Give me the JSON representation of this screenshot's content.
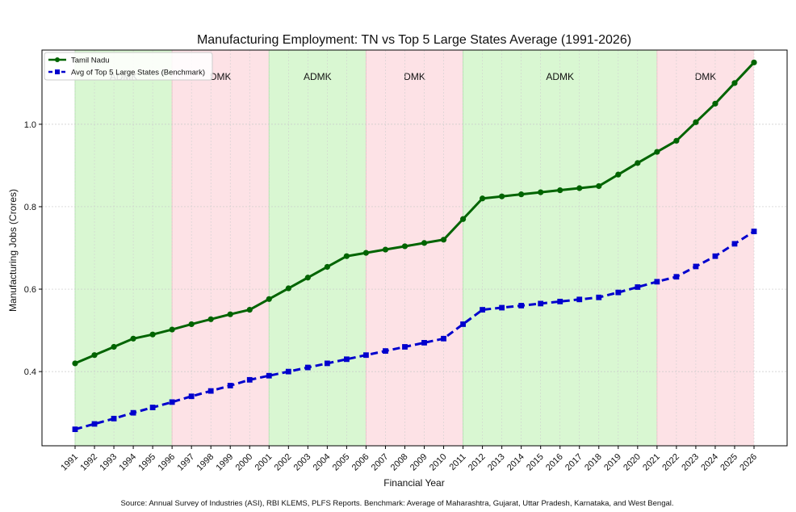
{
  "chart_data": {
    "type": "line",
    "title": "Manufacturing Employment: TN vs Top 5 Large States Average (1991-2026)",
    "xlabel": "Financial Year",
    "ylabel": "Manufacturing Jobs (Crores)",
    "x": [
      "1991",
      "1992",
      "1993",
      "1994",
      "1995",
      "1996",
      "1997",
      "1998",
      "1999",
      "2000",
      "2001",
      "2002",
      "2003",
      "2004",
      "2005",
      "2006",
      "2007",
      "2008",
      "2009",
      "2010",
      "2011",
      "2012",
      "2013",
      "2014",
      "2015",
      "2016",
      "2017",
      "2018",
      "2019",
      "2020",
      "2021",
      "2022",
      "2023",
      "2024",
      "2025",
      "2026"
    ],
    "ylim": [
      0.22,
      1.18
    ],
    "yticks": [
      0.4,
      0.6,
      0.8,
      1.0
    ],
    "ytick_labels": [
      "0.4",
      "0.6",
      "0.8",
      "1.0"
    ],
    "grid": true,
    "legend_position": "top-left",
    "series": [
      {
        "name": "Tamil Nadu",
        "color": "#006400",
        "style": "solid",
        "marker": "circle",
        "values": [
          0.42,
          0.44,
          0.46,
          0.48,
          0.49,
          0.502,
          0.515,
          0.527,
          0.539,
          0.55,
          0.576,
          0.602,
          0.628,
          0.654,
          0.68,
          0.688,
          0.696,
          0.704,
          0.712,
          0.72,
          0.77,
          0.82,
          0.825,
          0.83,
          0.835,
          0.84,
          0.845,
          0.85,
          0.878,
          0.906,
          0.933,
          0.96,
          1.005,
          1.05,
          1.1,
          1.15
        ]
      },
      {
        "name": "Avg of Top 5 Large States (Benchmark)",
        "color": "#0000CD",
        "style": "dashed",
        "marker": "square",
        "values": [
          0.26,
          0.273,
          0.286,
          0.3,
          0.313,
          0.326,
          0.34,
          0.353,
          0.366,
          0.38,
          0.39,
          0.4,
          0.41,
          0.42,
          0.43,
          0.44,
          0.45,
          0.46,
          0.47,
          0.48,
          0.515,
          0.55,
          0.555,
          0.56,
          0.565,
          0.57,
          0.575,
          0.58,
          0.592,
          0.605,
          0.618,
          0.63,
          0.655,
          0.68,
          0.71,
          0.74
        ]
      }
    ],
    "bands": [
      {
        "label": "ADMK",
        "start": "1991",
        "end": "1996",
        "color": "#d9f7d2"
      },
      {
        "label": "DMK",
        "start": "1996",
        "end": "2001",
        "color": "#fde2e6"
      },
      {
        "label": "ADMK",
        "start": "2001",
        "end": "2006",
        "color": "#d9f7d2"
      },
      {
        "label": "DMK",
        "start": "2006",
        "end": "2011",
        "color": "#fde2e6"
      },
      {
        "label": "ADMK",
        "start": "2011",
        "end": "2021",
        "color": "#d9f7d2"
      },
      {
        "label": "DMK",
        "start": "2021",
        "end": "2026",
        "color": "#fde2e6"
      }
    ],
    "source_note": "Source: Annual Survey of Industries (ASI), RBI KLEMS, PLFS Reports. Benchmark: Average of Maharashtra, Gujarat, Uttar Pradesh, Karnataka, and West Bengal."
  }
}
